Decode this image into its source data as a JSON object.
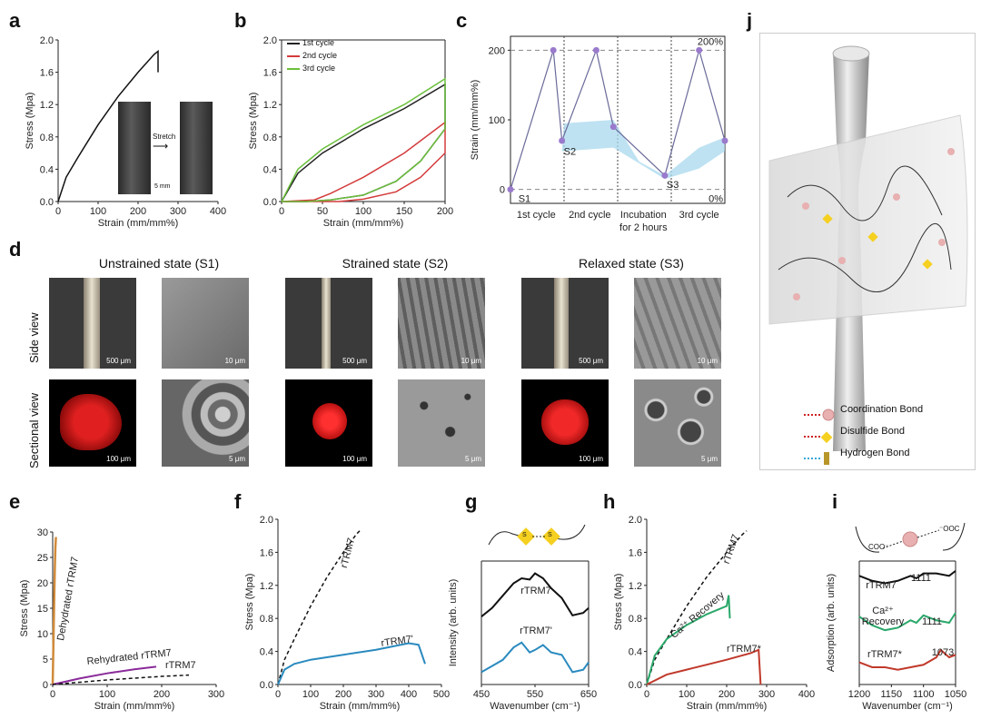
{
  "letters": {
    "a": "a",
    "b": "b",
    "c": "c",
    "d": "d",
    "e": "e",
    "f": "f",
    "g": "g",
    "h": "h",
    "i": "i",
    "j": "j"
  },
  "panel_a": {
    "ylabel": "Stress (Mpa)",
    "xlabel": "Strain (mm/mm%)",
    "stretch": "Stretch",
    "scalebar": "5 mm"
  },
  "panel_b": {
    "ylabel": "Stress (Mpa)",
    "xlabel": "Strain (mm/mm%)",
    "legend": [
      "1st cycle",
      "2nd cycle",
      "3rd cycle"
    ],
    "colors": [
      "#222222",
      "#d43b3b",
      "#6abf3c"
    ]
  },
  "panel_c": {
    "ylabel": "Strain (mm/mm%)",
    "x_labels": [
      "1st cycle",
      "2nd cycle",
      "Incubation for 2 hours",
      "3rd cycle"
    ],
    "ann": {
      "s1": "S1",
      "s2": "S2",
      "s3": "S3",
      "p200": "200%",
      "p0": "0%"
    }
  },
  "panel_d": {
    "titles": [
      "Unstrained state (S1)",
      "Strained state (S2)",
      "Relaxed state (S3)"
    ],
    "rows": [
      "Side view",
      "Sectional view"
    ],
    "scales": {
      "um500": "500 μm",
      "um10": "10 μm",
      "um100": "100 μm",
      "um5": "5 μm"
    }
  },
  "panel_e": {
    "ylabel": "Stress (Mpa)",
    "xlabel": "Strain (mm/mm%)",
    "labels": {
      "dehyd": "Dehydrated rTRM7",
      "rehyd": "Rehydrated rTRM7",
      "rtrm7": "rTRM7"
    }
  },
  "panel_f": {
    "ylabel": "Stress (Mpa)",
    "xlabel": "Strain (mm/mm%)",
    "labels": {
      "rtrm7": "rTRM7",
      "rtrm7p": "rTRM7'"
    }
  },
  "panel_g": {
    "ylabel": "Intensity (arb. units)",
    "xlabel": "Wavenumber (cm⁻¹)",
    "labels": {
      "rtrm7": "rTRM7",
      "rtrm7p": "rTRM7'"
    },
    "s": "S"
  },
  "panel_h": {
    "ylabel": "Stress (Mpa)",
    "xlabel": "Strain (mm/mm%)",
    "labels": {
      "rtrm7": "rTRM7",
      "ca": "Ca²⁺ Recovery",
      "rtrm7s": "rTRM7*"
    }
  },
  "panel_i": {
    "ylabel": "Adsorption (arb. units)",
    "xlabel": "Wavenumber (cm⁻¹)",
    "labels": {
      "rtrm7": "rTRM7",
      "ca": "Ca²⁺ Recovery",
      "rtrm7s": "rTRM7*"
    },
    "peaks": {
      "p1": "1111",
      "p2": "1111",
      "p3": "1073"
    },
    "coo1": "COO⁻",
    "coo2": "⁻OOC"
  },
  "panel_j": {
    "legend": [
      "Coordination Bond",
      "Disulfide Bond",
      "Hydrogen Bond"
    ]
  },
  "chart_data": [
    {
      "panel": "a",
      "type": "line",
      "xlim": [
        0,
        400
      ],
      "ylim": [
        0,
        2.0
      ],
      "x_ticks": [
        "0",
        "100",
        "200",
        "300",
        "400"
      ],
      "y_ticks": [
        "0.0",
        "0.4",
        "0.8",
        "1.2",
        "1.6",
        "2.0"
      ],
      "series": [
        {
          "x": [
            0,
            20,
            50,
            100,
            150,
            200,
            240,
            250,
            250
          ],
          "y": [
            0,
            0.3,
            0.55,
            0.95,
            1.3,
            1.6,
            1.82,
            1.86,
            1.6
          ]
        }
      ]
    },
    {
      "panel": "b",
      "type": "line",
      "xlim": [
        0,
        200
      ],
      "ylim": [
        0,
        2.0
      ],
      "x_ticks": [
        "0",
        "50",
        "100",
        "150",
        "200"
      ],
      "y_ticks": [
        "0.0",
        "0.4",
        "0.8",
        "1.2",
        "1.6",
        "2.0"
      ],
      "series": [
        {
          "name": "1st cycle",
          "x": [
            0,
            20,
            50,
            100,
            150,
            200,
            200,
            170,
            140,
            100,
            60,
            30,
            0
          ],
          "y": [
            0,
            0.35,
            0.6,
            0.9,
            1.15,
            1.45,
            0.9,
            0.5,
            0.25,
            0.08,
            0.02,
            0,
            0
          ]
        },
        {
          "name": "2nd cycle",
          "x": [
            0,
            40,
            60,
            100,
            150,
            200,
            200,
            170,
            140,
            100,
            70,
            50,
            0
          ],
          "y": [
            0,
            0.02,
            0.1,
            0.3,
            0.6,
            0.98,
            0.6,
            0.3,
            0.12,
            0.03,
            0,
            0,
            0
          ]
        },
        {
          "name": "3rd cycle",
          "x": [
            0,
            20,
            50,
            100,
            150,
            200,
            200,
            170,
            140,
            100,
            60,
            30,
            0
          ],
          "y": [
            0,
            0.4,
            0.65,
            0.95,
            1.2,
            1.52,
            0.9,
            0.5,
            0.25,
            0.08,
            0.02,
            0,
            0
          ]
        }
      ]
    },
    {
      "panel": "c",
      "type": "line",
      "ylim": [
        -20,
        220
      ],
      "y_ticks": [
        "0",
        "100",
        "200"
      ],
      "series": [
        {
          "x": [
            0,
            1,
            2,
            3,
            4,
            5
          ],
          "y": [
            0,
            200,
            70,
            200,
            20,
            200
          ]
        }
      ]
    },
    {
      "panel": "e",
      "type": "line",
      "xlim": [
        0,
        300
      ],
      "ylim": [
        0,
        30
      ],
      "x_ticks": [
        "0",
        "100",
        "200",
        "300"
      ],
      "y_ticks": [
        "0",
        "5",
        "10",
        "15",
        "20",
        "25",
        "30"
      ],
      "series": [
        {
          "name": "Dehydrated rTRM7",
          "x": [
            0,
            1,
            2,
            3,
            4,
            5,
            6
          ],
          "y": [
            0,
            6,
            12,
            18,
            23,
            27,
            29
          ]
        },
        {
          "name": "Rehydrated rTRM7",
          "x": [
            0,
            50,
            100,
            150,
            190
          ],
          "y": [
            0,
            1.2,
            2.2,
            3.0,
            3.5
          ]
        },
        {
          "name": "rTRM7",
          "x": [
            0,
            100,
            200,
            250
          ],
          "y": [
            0,
            0.9,
            1.6,
            1.85
          ]
        }
      ]
    },
    {
      "panel": "f",
      "type": "line",
      "xlim": [
        0,
        500
      ],
      "ylim": [
        0,
        2.0
      ],
      "x_ticks": [
        "0",
        "100",
        "200",
        "300",
        "400",
        "500"
      ],
      "y_ticks": [
        "0.0",
        "0.4",
        "0.8",
        "1.2",
        "1.6",
        "2.0"
      ],
      "series": [
        {
          "name": "rTRM7",
          "x": [
            0,
            20,
            50,
            100,
            150,
            200,
            240,
            250
          ],
          "y": [
            0,
            0.3,
            0.55,
            0.95,
            1.3,
            1.6,
            1.82,
            1.86
          ]
        },
        {
          "name": "rTRM7'",
          "x": [
            0,
            20,
            50,
            100,
            200,
            300,
            400,
            430,
            450
          ],
          "y": [
            0,
            0.18,
            0.25,
            0.3,
            0.36,
            0.42,
            0.5,
            0.48,
            0.25
          ]
        }
      ]
    },
    {
      "panel": "g",
      "type": "line",
      "xlim": [
        450,
        650
      ],
      "x_ticks": [
        "450",
        "550",
        "650"
      ],
      "series": [
        {
          "name": "rTRM7",
          "x": [
            450,
            470,
            490,
            510,
            525,
            540,
            550,
            565,
            580,
            600,
            620,
            640,
            650
          ],
          "y": [
            0.55,
            0.62,
            0.72,
            0.82,
            0.86,
            0.85,
            0.9,
            0.86,
            0.78,
            0.7,
            0.56,
            0.58,
            0.62
          ]
        },
        {
          "name": "rTRM7'",
          "x": [
            450,
            470,
            490,
            510,
            525,
            540,
            550,
            565,
            580,
            600,
            620,
            640,
            650
          ],
          "y": [
            0.1,
            0.15,
            0.2,
            0.3,
            0.34,
            0.26,
            0.28,
            0.32,
            0.26,
            0.24,
            0.1,
            0.12,
            0.18
          ]
        }
      ]
    },
    {
      "panel": "h",
      "type": "line",
      "xlim": [
        0,
        400
      ],
      "ylim": [
        0,
        2.0
      ],
      "x_ticks": [
        "0",
        "100",
        "200",
        "300",
        "400"
      ],
      "y_ticks": [
        "0.0",
        "0.4",
        "0.8",
        "1.2",
        "1.6",
        "2.0"
      ],
      "series": [
        {
          "name": "rTRM7",
          "x": [
            0,
            20,
            50,
            100,
            150,
            200,
            240,
            250
          ],
          "y": [
            0,
            0.3,
            0.55,
            0.95,
            1.3,
            1.6,
            1.82,
            1.86
          ]
        },
        {
          "name": "Ca²⁺ Recovery",
          "x": [
            0,
            20,
            50,
            100,
            150,
            200,
            205,
            208
          ],
          "y": [
            0,
            0.35,
            0.55,
            0.72,
            0.85,
            0.95,
            1.08,
            0.8
          ]
        },
        {
          "name": "rTRM7*",
          "x": [
            0,
            50,
            100,
            150,
            200,
            260,
            280,
            285
          ],
          "y": [
            0,
            0.12,
            0.18,
            0.24,
            0.3,
            0.38,
            0.42,
            0.0
          ]
        }
      ]
    },
    {
      "panel": "i",
      "type": "line",
      "xlim": [
        1200,
        1050
      ],
      "x_ticks": [
        "1200",
        "1150",
        "1100",
        "1050"
      ],
      "series": [
        {
          "name": "rTRM7",
          "x": [
            1200,
            1180,
            1160,
            1140,
            1120,
            1111,
            1100,
            1080,
            1060,
            1050
          ],
          "y": [
            0.88,
            0.84,
            0.82,
            0.84,
            0.88,
            0.86,
            0.9,
            0.9,
            0.88,
            0.92
          ]
        },
        {
          "name": "Ca²⁺ Recovery",
          "x": [
            1200,
            1180,
            1160,
            1140,
            1120,
            1111,
            1100,
            1080,
            1060,
            1050
          ],
          "y": [
            0.55,
            0.48,
            0.44,
            0.46,
            0.52,
            0.5,
            0.56,
            0.52,
            0.5,
            0.58
          ]
        },
        {
          "name": "rTRM7*",
          "x": [
            1200,
            1180,
            1160,
            1140,
            1120,
            1100,
            1080,
            1073,
            1060,
            1050
          ],
          "y": [
            0.18,
            0.14,
            0.14,
            0.12,
            0.14,
            0.16,
            0.22,
            0.28,
            0.22,
            0.24
          ]
        }
      ]
    }
  ]
}
